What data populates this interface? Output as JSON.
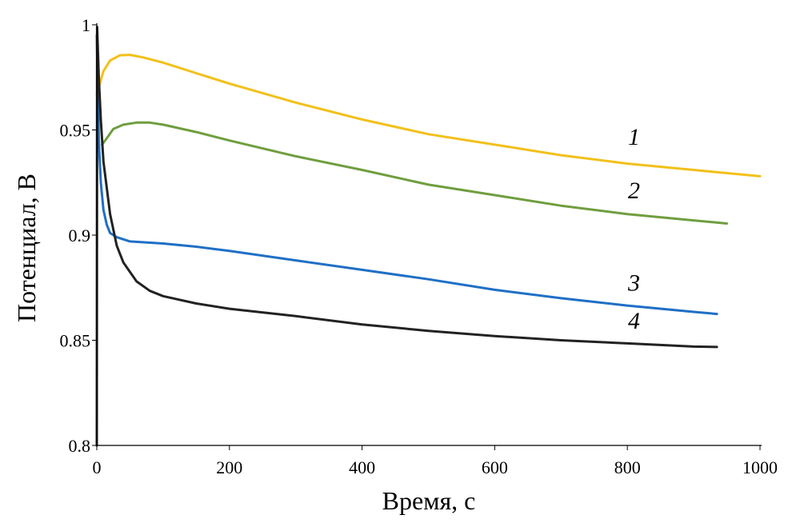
{
  "chart_data": {
    "type": "line",
    "title": "",
    "xlabel": "Время, с",
    "ylabel": "Потенциал, В",
    "xlim": [
      0,
      1000
    ],
    "ylim": [
      0.8,
      1.0
    ],
    "x_ticks": [
      0,
      200,
      400,
      600,
      800,
      1000
    ],
    "y_ticks": [
      0.8,
      0.85,
      0.9,
      0.95,
      1.0
    ],
    "x_tick_labels": [
      "0",
      "200",
      "400",
      "600",
      "800",
      "1000"
    ],
    "y_tick_labels": [
      "0.8",
      "0.85",
      "0.9",
      "0.95",
      "1"
    ],
    "grid": false,
    "legend": "none",
    "series": [
      {
        "name": "1",
        "color": "#F2C01A",
        "points": [
          [
            0,
            0.967
          ],
          [
            10,
            0.978
          ],
          [
            20,
            0.983
          ],
          [
            35,
            0.9855
          ],
          [
            50,
            0.9857
          ],
          [
            70,
            0.9845
          ],
          [
            100,
            0.982
          ],
          [
            150,
            0.977
          ],
          [
            200,
            0.972
          ],
          [
            300,
            0.963
          ],
          [
            400,
            0.955
          ],
          [
            500,
            0.948
          ],
          [
            600,
            0.943
          ],
          [
            700,
            0.938
          ],
          [
            800,
            0.934
          ],
          [
            900,
            0.931
          ],
          [
            1000,
            0.928
          ]
        ]
      },
      {
        "name": "2",
        "color": "#6F9E3F",
        "points": [
          [
            8,
            0.943
          ],
          [
            15,
            0.946
          ],
          [
            25,
            0.9505
          ],
          [
            40,
            0.9525
          ],
          [
            60,
            0.9535
          ],
          [
            80,
            0.9535
          ],
          [
            100,
            0.9525
          ],
          [
            150,
            0.949
          ],
          [
            200,
            0.945
          ],
          [
            300,
            0.9375
          ],
          [
            400,
            0.931
          ],
          [
            500,
            0.924
          ],
          [
            600,
            0.919
          ],
          [
            700,
            0.914
          ],
          [
            800,
            0.91
          ],
          [
            900,
            0.907
          ],
          [
            950,
            0.9055
          ]
        ]
      },
      {
        "name": "3",
        "color": "#1F6FC5",
        "points": [
          [
            0,
            0.995
          ],
          [
            3,
            0.945
          ],
          [
            6,
            0.925
          ],
          [
            10,
            0.912
          ],
          [
            15,
            0.905
          ],
          [
            20,
            0.901
          ],
          [
            30,
            0.899
          ],
          [
            50,
            0.897
          ],
          [
            100,
            0.896
          ],
          [
            150,
            0.8945
          ],
          [
            200,
            0.8925
          ],
          [
            300,
            0.888
          ],
          [
            400,
            0.8835
          ],
          [
            500,
            0.879
          ],
          [
            600,
            0.874
          ],
          [
            700,
            0.87
          ],
          [
            800,
            0.8665
          ],
          [
            900,
            0.8635
          ],
          [
            935,
            0.8625
          ]
        ]
      },
      {
        "name": "4",
        "color": "#222222",
        "points": [
          [
            0,
            0.8
          ],
          [
            0.5,
            0.999
          ],
          [
            3,
            0.975
          ],
          [
            6,
            0.955
          ],
          [
            10,
            0.935
          ],
          [
            20,
            0.91
          ],
          [
            30,
            0.895
          ],
          [
            40,
            0.887
          ],
          [
            60,
            0.878
          ],
          [
            80,
            0.8735
          ],
          [
            100,
            0.871
          ],
          [
            150,
            0.8675
          ],
          [
            200,
            0.865
          ],
          [
            300,
            0.8615
          ],
          [
            400,
            0.8575
          ],
          [
            500,
            0.8545
          ],
          [
            600,
            0.852
          ],
          [
            700,
            0.85
          ],
          [
            800,
            0.8485
          ],
          [
            900,
            0.847
          ],
          [
            935,
            0.8468
          ]
        ]
      }
    ],
    "annotations": [
      {
        "text": "1",
        "series": "1",
        "x": 810,
        "y": 0.943
      },
      {
        "text": "2",
        "series": "2",
        "x": 810,
        "y": 0.9175
      },
      {
        "text": "3",
        "series": "3",
        "x": 810,
        "y": 0.8735
      },
      {
        "text": "4",
        "series": "4",
        "x": 810,
        "y": 0.8555
      }
    ]
  }
}
